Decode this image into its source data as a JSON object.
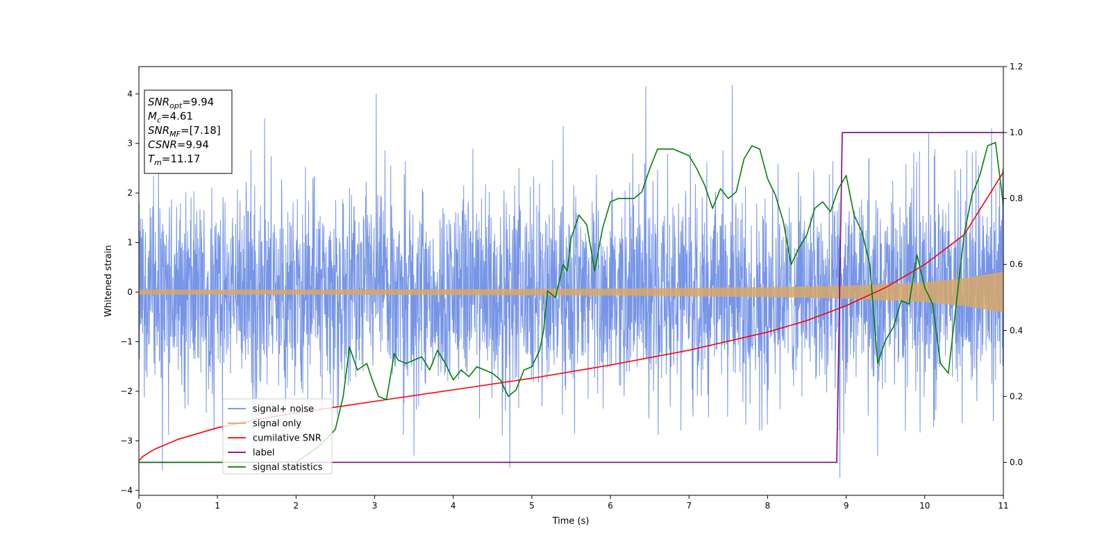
{
  "chart_data": {
    "type": "line",
    "title": "",
    "xlabel": "Time (s)",
    "ylabel": "Whitened strain",
    "xlim": [
      0,
      11
    ],
    "ylim": [
      -4.1,
      4.55
    ],
    "y2lim": [
      -0.1,
      1.2
    ],
    "x_ticks": [
      "0",
      "1",
      "2",
      "3",
      "4",
      "5",
      "6",
      "7",
      "8",
      "9",
      "10",
      "11"
    ],
    "y_ticks": [
      "−4",
      "−3",
      "−2",
      "−1",
      "0",
      "1",
      "2",
      "3",
      "4"
    ],
    "y2_ticks": [
      "0.0",
      "0.2",
      "0.4",
      "0.6",
      "0.8",
      "1.0",
      "1.2"
    ],
    "grid": false,
    "legend_position": "lower-left",
    "annotation": {
      "lines": [
        {
          "sym": "SNR",
          "sub": "opt",
          "val": "=9.94"
        },
        {
          "sym": "M",
          "sub": "c",
          "val": "=4.61"
        },
        {
          "sym": "SNR",
          "sub": "MF",
          "val": "=[7.18]"
        },
        {
          "sym": "CSNR",
          "sub": "",
          "val": "=9.94"
        },
        {
          "sym": "T",
          "sub": "m",
          "val": "=11.17"
        }
      ]
    },
    "series": [
      {
        "name": "signal+ noise",
        "color": "#6f8fe6",
        "axis": "left",
        "kind": "noise",
        "band": [
          -2.2,
          2.2
        ],
        "peaks": [
          [
            0.25,
            2.6
          ],
          [
            0.3,
            -3.6
          ],
          [
            1.6,
            3.5
          ],
          [
            1.45,
            -3.45
          ],
          [
            3.02,
            4.0
          ],
          [
            3.5,
            -3.3
          ],
          [
            4.72,
            -3.55
          ],
          [
            5.4,
            3.35
          ],
          [
            6.45,
            4.15
          ],
          [
            7.55,
            4.18
          ],
          [
            8.92,
            -3.75
          ],
          [
            9.4,
            -3.3
          ],
          [
            10.85,
            3.3
          ],
          [
            10.05,
            3.2
          ]
        ]
      },
      {
        "name": "signal only",
        "color": "#d8a86a",
        "axis": "left",
        "kind": "envelope",
        "x": [
          0,
          2,
          4,
          6,
          8,
          9,
          10,
          10.5,
          11
        ],
        "amp": [
          0.05,
          0.05,
          0.06,
          0.07,
          0.1,
          0.13,
          0.2,
          0.28,
          0.41
        ]
      },
      {
        "name": "cumilative SNR",
        "color": "#ff0000",
        "axis": "right",
        "kind": "line",
        "x": [
          0,
          0.05,
          0.2,
          0.5,
          1,
          1.5,
          2,
          3,
          4,
          5,
          6,
          7,
          8,
          8.5,
          9,
          9.5,
          10,
          10.5,
          11
        ],
        "y": [
          0.005,
          0.018,
          0.04,
          0.07,
          0.105,
          0.13,
          0.15,
          0.185,
          0.22,
          0.255,
          0.295,
          0.34,
          0.395,
          0.43,
          0.475,
          0.53,
          0.6,
          0.69,
          0.88
        ]
      },
      {
        "name": "label",
        "color": "#800080",
        "axis": "right",
        "kind": "line",
        "x": [
          0,
          8.88,
          8.95,
          11
        ],
        "y": [
          0,
          0,
          1,
          1
        ]
      },
      {
        "name": "signal statistics",
        "color": "#008000",
        "axis": "right",
        "kind": "line",
        "x": [
          0,
          2.0,
          2.3,
          2.5,
          2.6,
          2.68,
          2.78,
          2.9,
          2.97,
          3.05,
          3.15,
          3.25,
          3.3,
          3.4,
          3.5,
          3.6,
          3.7,
          3.8,
          3.9,
          4.0,
          4.1,
          4.2,
          4.3,
          4.4,
          4.5,
          4.6,
          4.7,
          4.8,
          4.9,
          5.0,
          5.1,
          5.15,
          5.2,
          5.3,
          5.4,
          5.45,
          5.5,
          5.6,
          5.7,
          5.8,
          5.9,
          6.0,
          6.1,
          6.2,
          6.3,
          6.4,
          6.5,
          6.6,
          6.7,
          6.8,
          6.9,
          7.0,
          7.1,
          7.2,
          7.3,
          7.4,
          7.5,
          7.6,
          7.7,
          7.8,
          7.9,
          8.0,
          8.1,
          8.2,
          8.3,
          8.4,
          8.5,
          8.6,
          8.7,
          8.8,
          8.9,
          9.0,
          9.1,
          9.2,
          9.3,
          9.4,
          9.5,
          9.6,
          9.7,
          9.8,
          9.9,
          10.0,
          10.1,
          10.2,
          10.3,
          10.4,
          10.5,
          10.6,
          10.7,
          10.8,
          10.9,
          11.0
        ],
        "y": [
          0.0,
          0.0,
          0.05,
          0.1,
          0.2,
          0.35,
          0.28,
          0.3,
          0.25,
          0.2,
          0.19,
          0.33,
          0.31,
          0.3,
          0.31,
          0.32,
          0.28,
          0.34,
          0.3,
          0.25,
          0.28,
          0.26,
          0.29,
          0.28,
          0.27,
          0.25,
          0.2,
          0.22,
          0.28,
          0.29,
          0.34,
          0.4,
          0.52,
          0.5,
          0.6,
          0.58,
          0.68,
          0.75,
          0.72,
          0.58,
          0.71,
          0.79,
          0.8,
          0.8,
          0.8,
          0.82,
          0.89,
          0.95,
          0.95,
          0.95,
          0.94,
          0.93,
          0.89,
          0.84,
          0.77,
          0.83,
          0.8,
          0.82,
          0.92,
          0.96,
          0.95,
          0.86,
          0.81,
          0.73,
          0.6,
          0.65,
          0.69,
          0.77,
          0.79,
          0.76,
          0.83,
          0.87,
          0.75,
          0.7,
          0.6,
          0.3,
          0.37,
          0.41,
          0.49,
          0.48,
          0.63,
          0.53,
          0.48,
          0.3,
          0.27,
          0.48,
          0.69,
          0.81,
          0.87,
          0.96,
          0.97,
          0.78
        ]
      }
    ]
  }
}
